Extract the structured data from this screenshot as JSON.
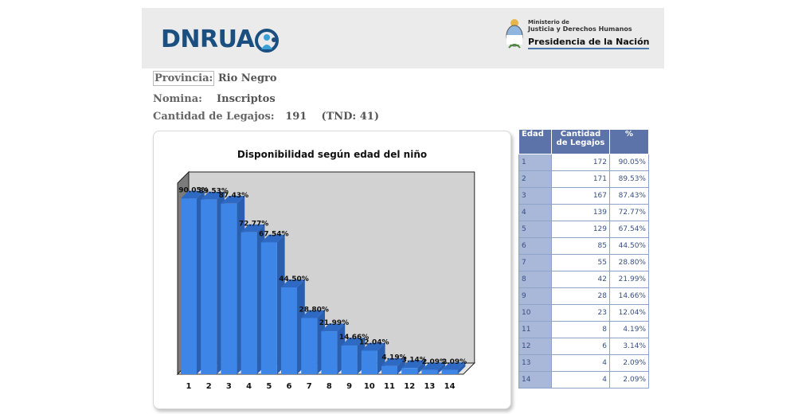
{
  "header": {
    "logo_text": "DNRUA",
    "ministry_line1": "Ministerio de",
    "ministry_line2": "Justicia y Derechos Humanos",
    "ministry_line3": "Presidencia de la Nación"
  },
  "info": {
    "provincia_label": "Provincia:",
    "provincia_value": "Rio Negro",
    "nomina_label": "Nomina:",
    "nomina_value": "Inscriptos",
    "cantidad_label": "Cantidad de Legajos:",
    "cantidad_value": "191",
    "tnd": "(TND: 41)"
  },
  "table": {
    "headers": [
      "Edad",
      "Cantidad de Legajos",
      "%"
    ],
    "rows": [
      {
        "edad": "1",
        "cantidad": "172",
        "pct": "90.05%"
      },
      {
        "edad": "2",
        "cantidad": "171",
        "pct": "89.53%"
      },
      {
        "edad": "3",
        "cantidad": "167",
        "pct": "87.43%"
      },
      {
        "edad": "4",
        "cantidad": "139",
        "pct": "72.77%"
      },
      {
        "edad": "5",
        "cantidad": "129",
        "pct": "67.54%"
      },
      {
        "edad": "6",
        "cantidad": "85",
        "pct": "44.50%"
      },
      {
        "edad": "7",
        "cantidad": "55",
        "pct": "28.80%"
      },
      {
        "edad": "8",
        "cantidad": "42",
        "pct": "21.99%"
      },
      {
        "edad": "9",
        "cantidad": "28",
        "pct": "14.66%"
      },
      {
        "edad": "10",
        "cantidad": "23",
        "pct": "12.04%"
      },
      {
        "edad": "11",
        "cantidad": "8",
        "pct": "4.19%"
      },
      {
        "edad": "12",
        "cantidad": "6",
        "pct": "3.14%"
      },
      {
        "edad": "13",
        "cantidad": "4",
        "pct": "2.09%"
      },
      {
        "edad": "14",
        "cantidad": "4",
        "pct": "2.09%"
      }
    ]
  },
  "chart_data": {
    "type": "bar",
    "title": "Disponibilidad según edad del niño",
    "categories": [
      "1",
      "2",
      "3",
      "4",
      "5",
      "6",
      "7",
      "8",
      "9",
      "10",
      "11",
      "12",
      "13",
      "14"
    ],
    "values": [
      90.05,
      89.53,
      87.43,
      72.77,
      67.54,
      44.5,
      28.8,
      21.99,
      14.66,
      12.04,
      4.19,
      3.14,
      2.09,
      2.09
    ],
    "labels": [
      "90.05%",
      "89.53%",
      "87.43%",
      "72.77%",
      "67.54%",
      "44.50%",
      "28.80%",
      "21.99%",
      "14.66%",
      "12.04%",
      "4.19%",
      "3.14%",
      "2.09%",
      "2.09%"
    ],
    "ylim": [
      0,
      100
    ],
    "grid": false,
    "bar_color": "#3d86e8",
    "bar_side_color": "#2a5fb0",
    "bar_top_color": "#2e69c4",
    "wall_color": "#d2d2d2"
  }
}
